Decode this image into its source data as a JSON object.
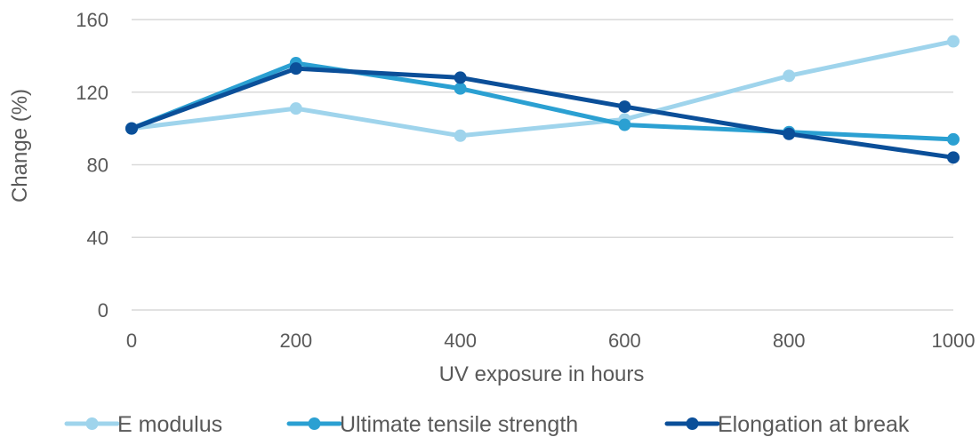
{
  "chart_data": {
    "type": "line",
    "xlabel": "UV exposure in hours",
    "ylabel": "Change (%)",
    "x": [
      0,
      200,
      400,
      600,
      800,
      1000
    ],
    "xticks": [
      "0",
      "200",
      "400",
      "600",
      "800",
      "1000"
    ],
    "yticks": [
      "0",
      "40",
      "80",
      "120",
      "160"
    ],
    "ylim": [
      0,
      160
    ],
    "grid": "horizontal",
    "legend_position": "bottom",
    "series": [
      {
        "name": "E modulus",
        "color": "#9fd4ec",
        "values": [
          100,
          111,
          96,
          105,
          129,
          148
        ]
      },
      {
        "name": "Ultimate tensile strength",
        "color": "#2ba0d2",
        "values": [
          100,
          136,
          122,
          102,
          98,
          94
        ]
      },
      {
        "name": "Elongation at break",
        "color": "#0b4f99",
        "values": [
          100,
          133,
          128,
          112,
          97,
          84
        ]
      }
    ]
  }
}
